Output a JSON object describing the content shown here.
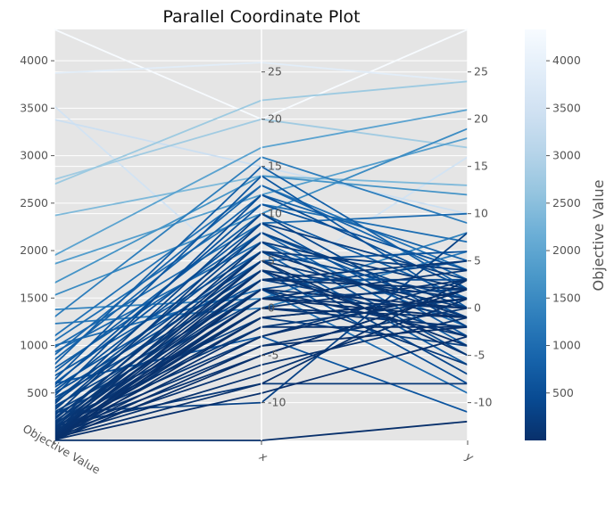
{
  "chart_data": {
    "type": "parallel-coordinates",
    "title": "Parallel Coordinate Plot",
    "axes": [
      {
        "name": "Objective Value",
        "range": [
          0,
          4330
        ],
        "ticks": [
          500,
          1000,
          1500,
          2000,
          2500,
          3000,
          3500,
          4000
        ]
      },
      {
        "name": "x",
        "range": [
          -14,
          29.5
        ],
        "ticks": [
          -10,
          -5,
          0,
          5,
          10,
          15,
          20,
          25
        ]
      },
      {
        "name": "y",
        "range": [
          -14,
          29.5
        ],
        "ticks": [
          -10,
          -5,
          0,
          5,
          10,
          15,
          20,
          25
        ]
      }
    ],
    "colorbar": {
      "label": "Objective Value",
      "range": [
        0,
        4330
      ],
      "ticks": [
        500,
        1000,
        1500,
        2000,
        2500,
        3000,
        3500,
        4000
      ],
      "colormap": [
        "#f7fbff",
        "#deebf7",
        "#c6dbef",
        "#9ecae1",
        "#6baed6",
        "#4292c6",
        "#2171b5",
        "#08519c",
        "#08306b"
      ]
    },
    "grid": true,
    "colors": {
      "panel": "#e5e5e5",
      "grid": "#ffffff",
      "text": "#555555"
    },
    "trials": [
      [
        4330,
        20,
        29.5
      ],
      [
        3870,
        26,
        24
      ],
      [
        3520,
        2,
        16
      ],
      [
        3380,
        15,
        10
      ],
      [
        2750,
        20,
        17
      ],
      [
        2700,
        22,
        24
      ],
      [
        2370,
        14,
        13
      ],
      [
        1950,
        17,
        21
      ],
      [
        1860,
        12,
        18
      ],
      [
        1660,
        14,
        12
      ],
      [
        1530,
        10,
        19
      ],
      [
        1380,
        1,
        8
      ],
      [
        1300,
        16,
        9
      ],
      [
        1230,
        0,
        6
      ],
      [
        1100,
        13,
        4
      ],
      [
        1050,
        11,
        7
      ],
      [
        980,
        9,
        10
      ],
      [
        930,
        7,
        -2
      ],
      [
        900,
        13,
        3
      ],
      [
        850,
        12,
        5
      ],
      [
        800,
        15,
        2
      ],
      [
        760,
        8,
        -4
      ],
      [
        720,
        10,
        1
      ],
      [
        680,
        6,
        -6
      ],
      [
        640,
        14,
        0
      ],
      [
        600,
        9,
        -3
      ],
      [
        580,
        11,
        4
      ],
      [
        560,
        5,
        6
      ],
      [
        520,
        8,
        -1
      ],
      [
        500,
        4,
        -8
      ],
      [
        470,
        12,
        2
      ],
      [
        450,
        3,
        3
      ],
      [
        420,
        7,
        -5
      ],
      [
        400,
        6,
        1
      ],
      [
        380,
        10,
        -2
      ],
      [
        360,
        2,
        5
      ],
      [
        340,
        5,
        -7
      ],
      [
        320,
        8,
        0
      ],
      [
        300,
        1,
        2
      ],
      [
        280,
        -1,
        -4
      ],
      [
        260,
        9,
        3
      ],
      [
        240,
        4,
        -3
      ],
      [
        220,
        6,
        4
      ],
      [
        200,
        3,
        -1
      ],
      [
        190,
        -2,
        1
      ],
      [
        180,
        7,
        2
      ],
      [
        170,
        2,
        -6
      ],
      [
        160,
        5,
        0
      ],
      [
        150,
        -3,
        3
      ],
      [
        140,
        4,
        1
      ],
      [
        130,
        0,
        -2
      ],
      [
        120,
        3,
        5
      ],
      [
        110,
        -4,
        0
      ],
      [
        100,
        6,
        -1
      ],
      [
        95,
        1,
        4
      ],
      [
        90,
        -5,
        2
      ],
      [
        85,
        2,
        -3
      ],
      [
        80,
        -1,
        1
      ],
      [
        75,
        5,
        -5
      ],
      [
        70,
        0,
        3
      ],
      [
        65,
        -6,
        -1
      ],
      [
        60,
        3,
        2
      ],
      [
        55,
        -2,
        -2
      ],
      [
        50,
        1,
        0
      ],
      [
        45,
        -7,
        1
      ],
      [
        40,
        4,
        -4
      ],
      [
        35,
        -3,
        2
      ],
      [
        30,
        0,
        -1
      ],
      [
        25,
        -8,
        3
      ],
      [
        20,
        2,
        0
      ],
      [
        15,
        -4,
        -2
      ],
      [
        10,
        -1,
        1
      ],
      [
        8,
        -9,
        -3
      ],
      [
        5,
        1,
        -1
      ],
      [
        3,
        -5,
        2
      ],
      [
        2,
        -14,
        -12
      ],
      [
        1000,
        2,
        -9
      ],
      [
        600,
        -3,
        -11
      ],
      [
        300,
        -10,
        8
      ],
      [
        150,
        -8,
        -8
      ]
    ]
  }
}
